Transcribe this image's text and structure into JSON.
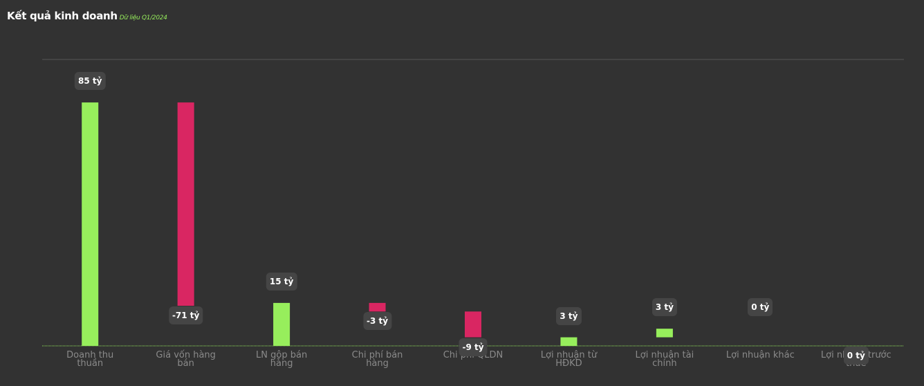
{
  "chart_data": {
    "type": "waterfall",
    "title": "Kết quả kinh doanh",
    "subtitle": "Dữ liệu Q1/2024",
    "categories": [
      "Doanh thu thuần",
      "Giá vốn hàng bán",
      "LN gộp bán hàng",
      "Chi phí bán hàng",
      "Chi phí QLDN",
      "Lợi nhuận từ HĐKD",
      "Lợi nhuận tài chính",
      "Lợi nhuận khác",
      "Lợi nhuận trước thuế"
    ],
    "values": [
      85,
      -71,
      15,
      -3,
      -9,
      3,
      3,
      0,
      0
    ],
    "value_labels": [
      "85 tỷ",
      "-71 tỷ",
      "15 tỷ",
      "-3 tỷ",
      "-9 tỷ",
      "3 tỷ",
      "3 tỷ",
      "0 tỷ",
      "0 tỷ"
    ],
    "totals": [
      0,
      2,
      5,
      8
    ],
    "positive_color": "#97ee5c",
    "negative_color": "#d92662",
    "ylim": [
      0,
      100
    ]
  }
}
